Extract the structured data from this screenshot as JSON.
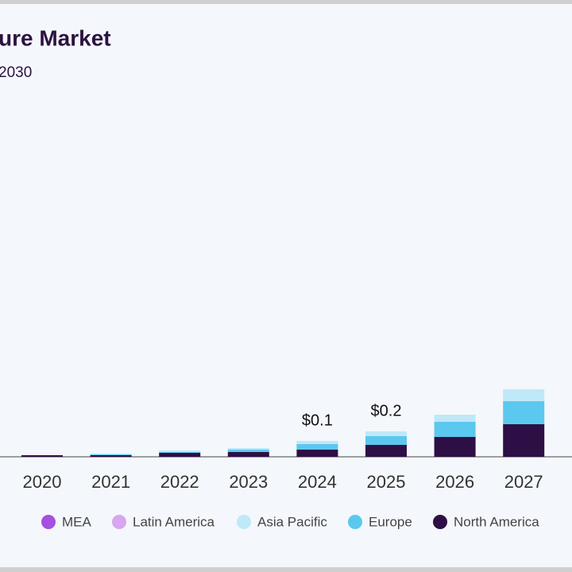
{
  "chart_data": {
    "type": "bar",
    "stacked": true,
    "title": "ure Market",
    "subtitle": "2030",
    "categories": [
      "2020",
      "2021",
      "2022",
      "2023",
      "2024",
      "2025",
      "2026",
      "2027"
    ],
    "series": [
      {
        "name": "MEA",
        "color": "#a550e0",
        "values": [
          0,
          0,
          0,
          0,
          0,
          0,
          0,
          0
        ]
      },
      {
        "name": "Latin America",
        "color": "#d6a6ee",
        "values": [
          0,
          0,
          0,
          0,
          0,
          0,
          0,
          0
        ]
      },
      {
        "name": "Asia Pacific",
        "color": "#bfe8f8",
        "values": [
          0,
          0.005,
          0.01,
          0.01,
          0.02,
          0.03,
          0.045,
          0.075
        ]
      },
      {
        "name": "Europe",
        "color": "#5bc8ef",
        "values": [
          0,
          0.005,
          0.005,
          0.015,
          0.035,
          0.055,
          0.095,
          0.145
        ]
      },
      {
        "name": "North America",
        "color": "#2e0f45",
        "values": [
          0.01,
          0.01,
          0.025,
          0.03,
          0.045,
          0.075,
          0.125,
          0.205
        ]
      }
    ],
    "totals": [
      null,
      null,
      null,
      null,
      0.1,
      0.16,
      null,
      null
    ],
    "total_labels": [
      null,
      null,
      null,
      null,
      "$0.1",
      "$0.2",
      null,
      null
    ]
  }
}
